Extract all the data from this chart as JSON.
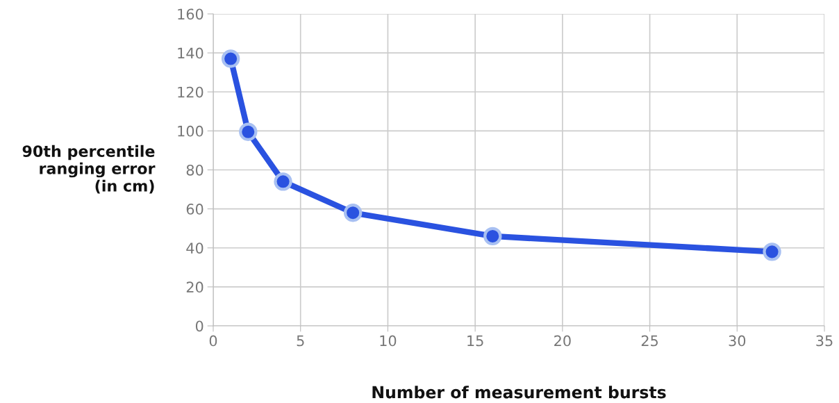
{
  "chart_data": {
    "type": "line",
    "xlabel": "Number of measurement bursts",
    "ylabel": "90th percentile\nranging error\n(in cm)",
    "x": [
      1,
      2,
      4,
      8,
      16,
      32
    ],
    "series": [
      {
        "color": "#2a52e0",
        "values": [
          137,
          99.5,
          74,
          58,
          46,
          38
        ]
      }
    ],
    "xlim": [
      0,
      35
    ],
    "xticks": [
      0,
      5,
      10,
      15,
      20,
      25,
      30,
      35
    ],
    "ylim": [
      0,
      160
    ],
    "yticks": [
      0,
      20,
      40,
      60,
      80,
      100,
      120,
      140,
      160
    ],
    "grid": true,
    "marker": "circle",
    "line_style": "solid"
  }
}
